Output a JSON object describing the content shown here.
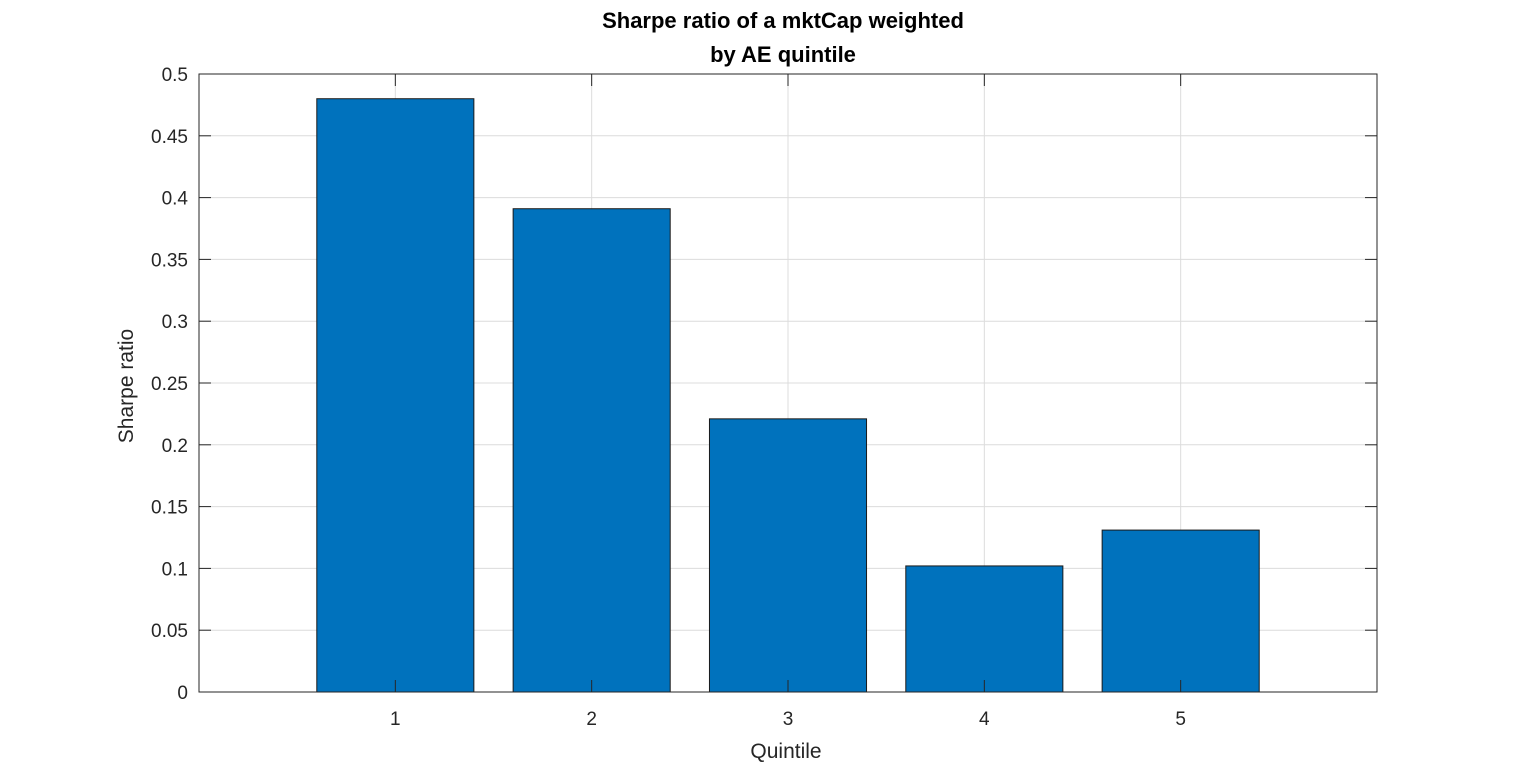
{
  "chart_data": {
    "type": "bar",
    "title": [
      "Sharpe ratio of a mktCap weighted",
      "by AE quintile"
    ],
    "xlabel": "Quintile",
    "ylabel": "Sharpe ratio",
    "categories": [
      "1",
      "2",
      "3",
      "4",
      "5"
    ],
    "values": [
      0.48,
      0.391,
      0.221,
      0.102,
      0.131
    ],
    "xlim": [
      0,
      6
    ],
    "ylim": [
      0,
      0.5
    ],
    "yticks": [
      "0",
      "0.05",
      "0.1",
      "0.15",
      "0.2",
      "0.25",
      "0.3",
      "0.35",
      "0.4",
      "0.45",
      "0.5"
    ],
    "grid": true,
    "bar_color": "#0072BD"
  }
}
